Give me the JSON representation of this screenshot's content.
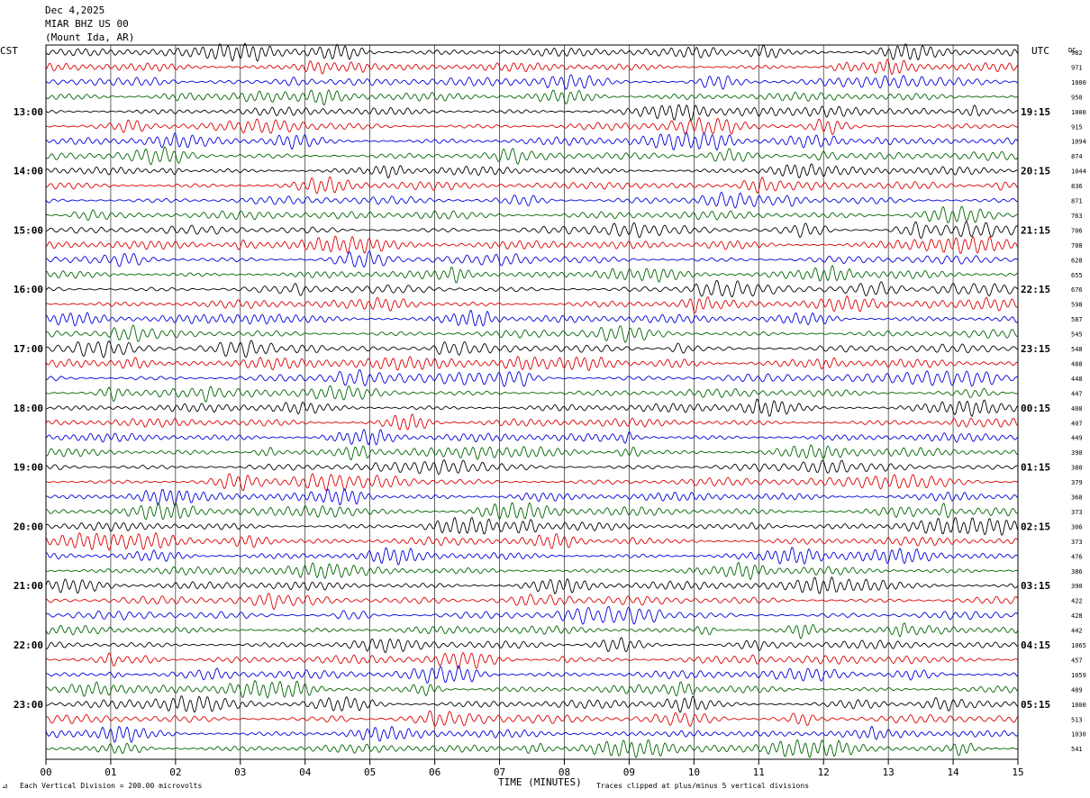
{
  "header": {
    "date": "Dec 4,2025",
    "station": "MIAR BHZ US 00",
    "location": "(Mount Ida, AR)"
  },
  "tz_left": "CST",
  "tz_right": "UTC",
  "dc_label": "DC",
  "footer": {
    "scale_note": "Each Vertical Division =  200.00 microvolts",
    "clip_note": "Traces clipped at plus/minus 5 vertical divisions"
  },
  "chart_data": {
    "type": "line",
    "title": "",
    "xlabel": "TIME (MINUTES)",
    "ylabel": "",
    "xlim": [
      0,
      15
    ],
    "x_ticks": [
      "00",
      "01",
      "02",
      "03",
      "04",
      "05",
      "06",
      "07",
      "08",
      "09",
      "10",
      "11",
      "12",
      "13",
      "14",
      "15"
    ],
    "left_hour_labels": [
      "13:00",
      "14:00",
      "15:00",
      "16:00",
      "17:00",
      "18:00",
      "19:00",
      "20:00",
      "21:00",
      "22:00",
      "23:00"
    ],
    "right_hour_labels": [
      "19:15",
      "20:15",
      "21:15",
      "22:15",
      "23:15",
      "00:15",
      "01:15",
      "02:15",
      "03:15",
      "04:15",
      "05:15"
    ],
    "trace_colors": [
      "#000000",
      "#dd0000",
      "#0000dd",
      "#006600"
    ],
    "trace_count": 48,
    "dc_offsets": [
      "982",
      "971",
      "1000",
      "950",
      "1000",
      "915",
      "1094",
      "874",
      "1044",
      "836",
      "871",
      "763",
      "706",
      "708",
      "628",
      "655",
      "676",
      "598",
      "587",
      "545",
      "548",
      "488",
      "448",
      "447",
      "408",
      "407",
      "449",
      "390",
      "380",
      "379",
      "368",
      "373",
      "306",
      "373",
      "476",
      "386",
      "390",
      "422",
      "428",
      "442",
      "1065",
      "457",
      "1059",
      "489",
      "1000",
      "513",
      "1030",
      "541"
    ]
  }
}
